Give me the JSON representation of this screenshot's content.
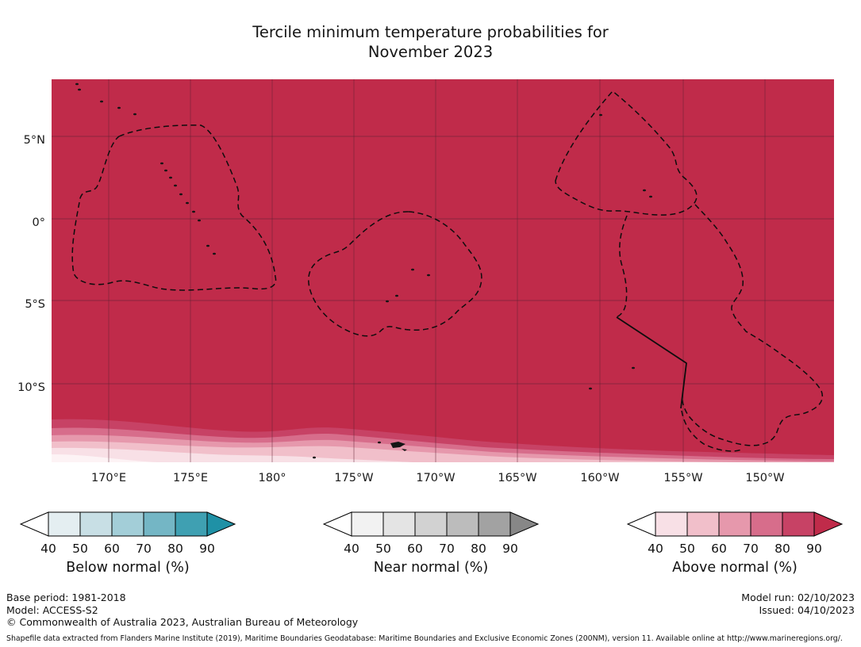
{
  "title": {
    "line1": "Tercile minimum temperature probabilities for",
    "line2": "November 2023"
  },
  "map": {
    "base_color": "#c02b4a",
    "x_ticks": [
      "170°E",
      "175°E",
      "180°",
      "175°W",
      "170°W",
      "165°W",
      "160°W",
      "155°W",
      "150°W"
    ],
    "y_ticks": [
      "5°N",
      "0°",
      "5°S",
      "10°S"
    ]
  },
  "legends": [
    {
      "title": "Below normal (%)",
      "ticks": [
        "40",
        "50",
        "60",
        "70",
        "80",
        "90"
      ],
      "colors": [
        "#ffffff",
        "#e4eef1",
        "#c8dfe5",
        "#a3ced8",
        "#74b6c5",
        "#3fa0b2",
        "#1f91a6"
      ]
    },
    {
      "title": "Near normal (%)",
      "ticks": [
        "40",
        "50",
        "60",
        "70",
        "80",
        "90"
      ],
      "colors": [
        "#ffffff",
        "#f2f2f2",
        "#e4e4e4",
        "#d2d2d2",
        "#bcbcbc",
        "#a2a2a2",
        "#878787"
      ]
    },
    {
      "title": "Above normal (%)",
      "ticks": [
        "40",
        "50",
        "60",
        "70",
        "80",
        "90"
      ],
      "colors": [
        "#ffffff",
        "#f8e0e6",
        "#f1bfca",
        "#e698ac",
        "#d76d8b",
        "#c74265",
        "#c02b4a"
      ]
    }
  ],
  "footer": {
    "base_period": "Base period: 1981-2018",
    "model": "Model: ACCESS-S2",
    "copyright": "© Commonwealth of Australia 2023, Australian Bureau of Meteorology",
    "model_run": "Model run: 02/10/2023",
    "issued": "Issued: 04/10/2023",
    "shapefile_note": "Shapefile data extracted from Flanders Marine Institute (2019), Maritime Boundaries Geodatabase: Maritime Boundaries and Exclusive Economic Zones (200NM), version 11. Available online at http://www.marineregions.org/."
  },
  "chart_data": {
    "type": "heatmap",
    "title": "Tercile minimum temperature probabilities for November 2023",
    "variable": "Probability that minimum temperature falls in the above-normal tercile",
    "x_ticks": [
      "170°E",
      "175°E",
      "180°",
      "175°W",
      "170°W",
      "165°W",
      "160°W",
      "155°W",
      "150°W"
    ],
    "y_ticks": [
      "5°N",
      "0°",
      "5°S",
      "10°S"
    ],
    "legend_bins_percent": [
      40,
      50,
      60,
      70,
      80,
      90
    ],
    "legend_series": [
      "Below normal (%)",
      "Near normal (%)",
      "Above normal (%)"
    ],
    "values_summary": "Above-normal probability exceeds 90% over nearly the entire Pacific domain (solid dark red); narrow contour bands stepping down from 90% toward 40% appear only along the far southern edge of the map, strongest in the south-west corner.",
    "overlays": [
      "Dashed black lines: Exclusive Economic Zone maritime boundaries",
      "Solid black line segment near 158°W between about 6°S and 11°S",
      "Small black specks: Pacific island land areas"
    ],
    "model": "ACCESS-S2",
    "base_period": "1981-2018",
    "model_run_date": "02/10/2023",
    "issued_date": "04/10/2023"
  }
}
